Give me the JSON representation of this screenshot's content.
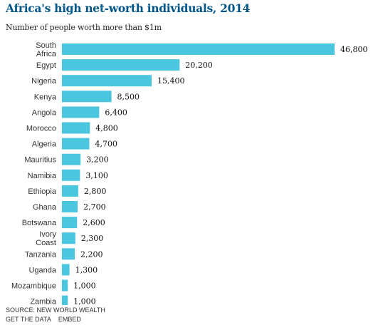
{
  "chart_data": {
    "type": "bar",
    "orientation": "horizontal",
    "title": "Africa's high net-worth individuals, 2014",
    "subtitle": "Number of people worth more than $1m",
    "categories": [
      [
        "South",
        "Africa"
      ],
      [
        "Egypt"
      ],
      [
        "Nigeria"
      ],
      [
        "Kenya"
      ],
      [
        "Angola"
      ],
      [
        "Morocco"
      ],
      [
        "Algeria"
      ],
      [
        "Mauritius"
      ],
      [
        "Namibia"
      ],
      [
        "Ethiopia"
      ],
      [
        "Ghana"
      ],
      [
        "Botswana"
      ],
      [
        "Ivory",
        "Coast"
      ],
      [
        "Tanzania"
      ],
      [
        "Uganda"
      ],
      [
        "Mozambique"
      ],
      [
        "Zambia"
      ]
    ],
    "values": [
      46800,
      20200,
      15400,
      8500,
      6400,
      4800,
      4700,
      3200,
      3100,
      2800,
      2700,
      2600,
      2300,
      2200,
      1300,
      1000,
      1000
    ],
    "value_labels": [
      "46,800",
      "20,200",
      "15,400",
      "8,500",
      "6,400",
      "4,800",
      "4,700",
      "3,200",
      "3,100",
      "2,800",
      "2,700",
      "2,600",
      "2,300",
      "2,200",
      "1,300",
      "1,000",
      "1,000"
    ],
    "xlim": [
      0,
      46800
    ],
    "bar_color": "#4bc6df",
    "grid": false,
    "legend": "none"
  },
  "footer": {
    "source": "SOURCE: NEW WORLD WEALTH",
    "get_data": "GET THE DATA",
    "embed": "EMBED"
  },
  "colors": {
    "title": "#005689",
    "bar": "#4bc6df"
  }
}
